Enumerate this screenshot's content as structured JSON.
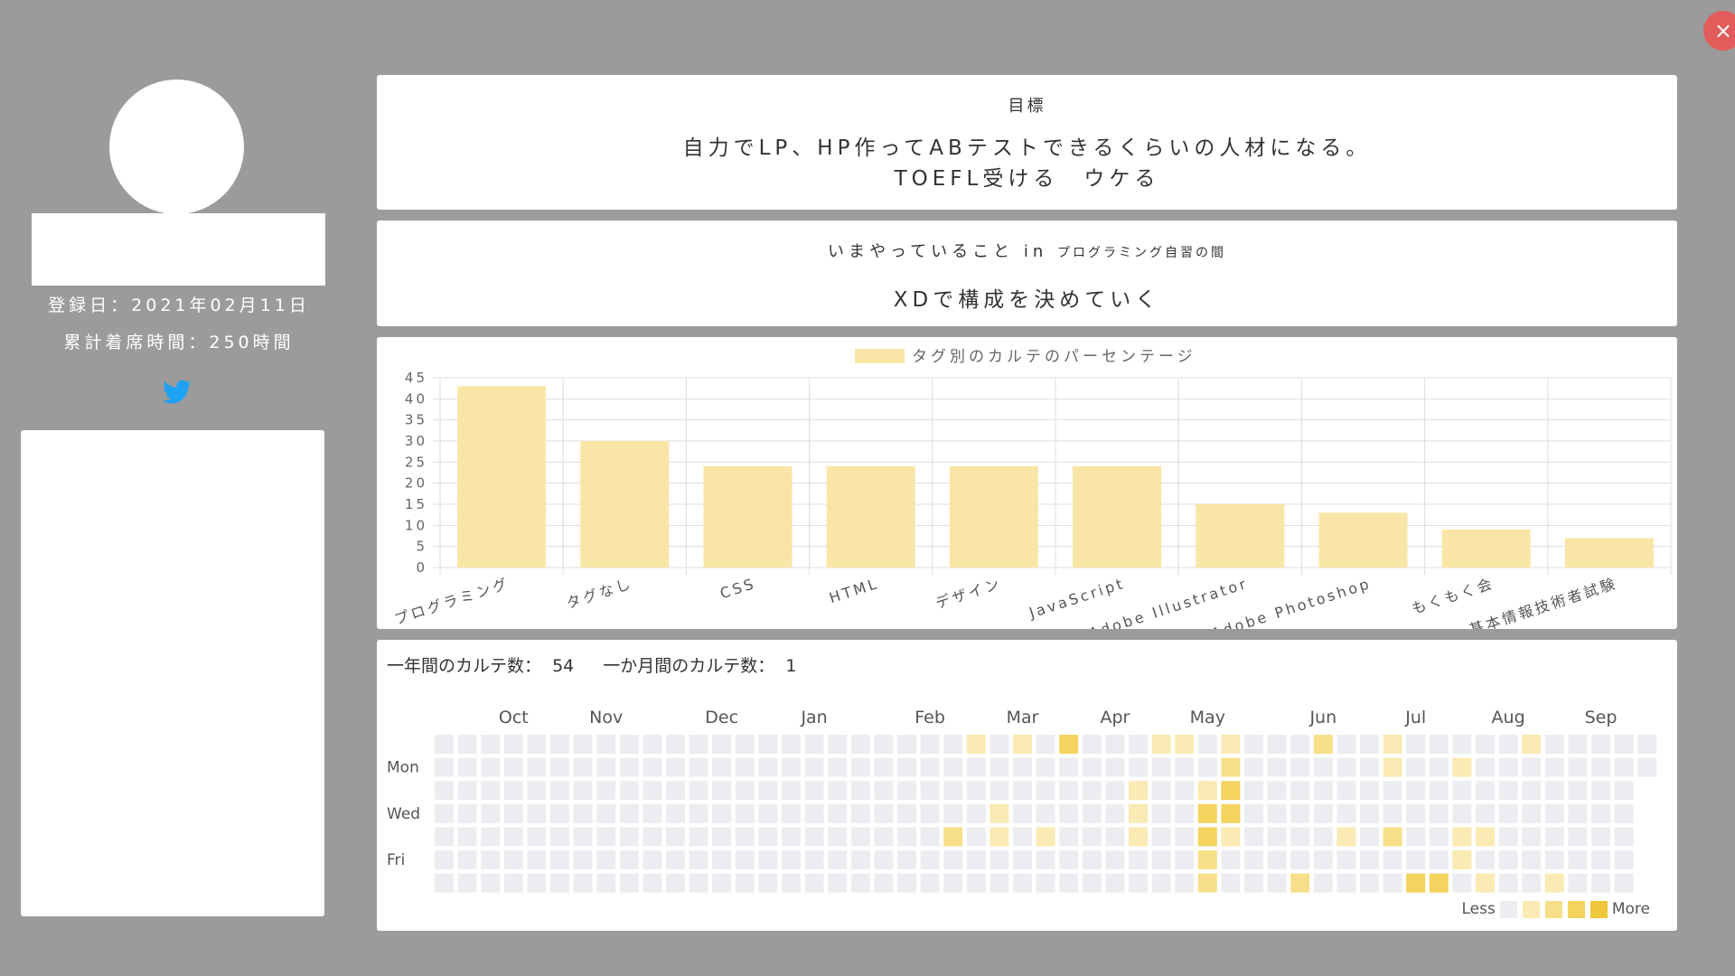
{
  "close_label": "×",
  "profile": {
    "registered": "登録日：2021年02月11日",
    "total_time": "累計着席時間：250時間"
  },
  "goal": {
    "title": "目標",
    "text": "自力でLP、HP作ってABテストできるくらいの人材になる。\nTOEFL受ける　ウケる"
  },
  "doing": {
    "title": "いまやっていること in",
    "subtitle": "プログラミング自習の間",
    "text": "XDで構成を決めていく"
  },
  "chart_data": {
    "type": "bar",
    "legend": "タグ別のカルテのパーセンテージ",
    "categories": [
      "プログラミング",
      "タグなし",
      "CSS",
      "HTML",
      "デザイン",
      "JavaScript",
      "Adobe Illustrator",
      "Adobe Photoshop",
      "もくもく会",
      "基本情報技術者試験"
    ],
    "values": [
      43,
      30,
      24,
      24,
      24,
      24,
      15,
      13,
      9,
      7
    ],
    "ylim": [
      0,
      45
    ],
    "yticks": [
      0,
      5,
      10,
      15,
      20,
      25,
      30,
      35,
      40,
      45
    ],
    "bar_color": "#f9e6a6",
    "grid": true,
    "legend_position": "top"
  },
  "activity": {
    "year_label": "一年間のカルテ数：",
    "year_count": "54",
    "month_label": "一か月間のカルテ数：",
    "month_count": "1",
    "months": [
      {
        "label": "Oct",
        "col": 3
      },
      {
        "label": "Nov",
        "col": 7
      },
      {
        "label": "Dec",
        "col": 12
      },
      {
        "label": "Jan",
        "col": 16
      },
      {
        "label": "Feb",
        "col": 21
      },
      {
        "label": "Mar",
        "col": 25
      },
      {
        "label": "Apr",
        "col": 29
      },
      {
        "label": "May",
        "col": 33
      },
      {
        "label": "Jun",
        "col": 38
      },
      {
        "label": "Jul",
        "col": 42
      },
      {
        "label": "Aug",
        "col": 46
      },
      {
        "label": "Sep",
        "col": 50
      }
    ],
    "day_labels": [
      {
        "label": "Mon",
        "row": 1
      },
      {
        "label": "Wed",
        "row": 3
      },
      {
        "label": "Fri",
        "row": 5
      }
    ],
    "weeks": 53,
    "active_cells": [
      {
        "w": 23,
        "d": 0,
        "l": 1
      },
      {
        "w": 25,
        "d": 0,
        "l": 1
      },
      {
        "w": 27,
        "d": 0,
        "l": 3
      },
      {
        "w": 31,
        "d": 0,
        "l": 1
      },
      {
        "w": 32,
        "d": 0,
        "l": 1
      },
      {
        "w": 34,
        "d": 0,
        "l": 1
      },
      {
        "w": 38,
        "d": 0,
        "l": 2
      },
      {
        "w": 41,
        "d": 0,
        "l": 1
      },
      {
        "w": 47,
        "d": 0,
        "l": 1
      },
      {
        "w": 34,
        "d": 1,
        "l": 2
      },
      {
        "w": 41,
        "d": 1,
        "l": 1
      },
      {
        "w": 44,
        "d": 1,
        "l": 1
      },
      {
        "w": 30,
        "d": 2,
        "l": 1
      },
      {
        "w": 33,
        "d": 2,
        "l": 1
      },
      {
        "w": 34,
        "d": 2,
        "l": 3
      },
      {
        "w": 24,
        "d": 3,
        "l": 1
      },
      {
        "w": 30,
        "d": 3,
        "l": 1
      },
      {
        "w": 33,
        "d": 3,
        "l": 3
      },
      {
        "w": 34,
        "d": 3,
        "l": 3
      },
      {
        "w": 22,
        "d": 4,
        "l": 2
      },
      {
        "w": 24,
        "d": 4,
        "l": 1
      },
      {
        "w": 26,
        "d": 4,
        "l": 1
      },
      {
        "w": 30,
        "d": 4,
        "l": 1
      },
      {
        "w": 33,
        "d": 4,
        "l": 3
      },
      {
        "w": 34,
        "d": 4,
        "l": 1
      },
      {
        "w": 39,
        "d": 4,
        "l": 1
      },
      {
        "w": 41,
        "d": 4,
        "l": 2
      },
      {
        "w": 44,
        "d": 4,
        "l": 1
      },
      {
        "w": 45,
        "d": 4,
        "l": 1
      },
      {
        "w": 33,
        "d": 5,
        "l": 2
      },
      {
        "w": 44,
        "d": 5,
        "l": 1
      },
      {
        "w": 33,
        "d": 6,
        "l": 2
      },
      {
        "w": 37,
        "d": 6,
        "l": 2
      },
      {
        "w": 42,
        "d": 6,
        "l": 3
      },
      {
        "w": 43,
        "d": 6,
        "l": 3
      },
      {
        "w": 45,
        "d": 6,
        "l": 1
      },
      {
        "w": 48,
        "d": 6,
        "l": 1
      }
    ],
    "level_colors": [
      "#ebedf0",
      "#faeab3",
      "#f7df8a",
      "#f4d35e",
      "#f0c63a"
    ],
    "legend_less": "Less",
    "legend_more": "More"
  }
}
